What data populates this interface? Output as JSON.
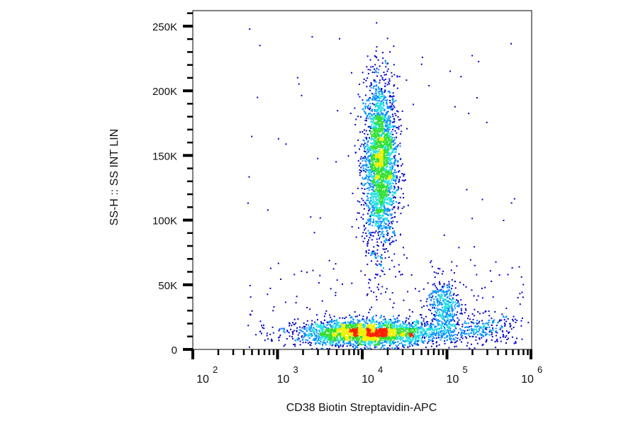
{
  "chart_data": {
    "type": "scatter",
    "subtype": "flow-cytometry density dot plot",
    "xlabel": "CD38 Biotin Streptavidin-APC",
    "ylabel": "SS-H :: SS INT LIN",
    "x_scale": "log",
    "xlim": [
      100,
      1000000
    ],
    "ylim": [
      0,
      262000
    ],
    "xticks": [
      {
        "value": 100,
        "base": "10",
        "exp": "2"
      },
      {
        "value": 1000,
        "base": "10",
        "exp": "3"
      },
      {
        "value": 10000,
        "base": "10",
        "exp": "4"
      },
      {
        "value": 100000,
        "base": "10",
        "exp": "5"
      },
      {
        "value": 1000000,
        "base": "10",
        "exp": "6"
      }
    ],
    "yticks": [
      {
        "value": 0,
        "label": "0"
      },
      {
        "value": 50000,
        "label": "50K"
      },
      {
        "value": 100000,
        "label": "100K"
      },
      {
        "value": 150000,
        "label": "150K"
      },
      {
        "value": 200000,
        "label": "200K"
      },
      {
        "value": 250000,
        "label": "250K"
      }
    ],
    "grid": false,
    "legend": "none",
    "colormap": [
      "#0000c8",
      "#0090ff",
      "#20e0e0",
      "#30e030",
      "#f0f000",
      "#ff2000"
    ],
    "populations": [
      {
        "x_center": 16000,
        "x_log_sd": 0.1,
        "y_center": 145000,
        "y_sd": 33000,
        "events": 2600
      },
      {
        "x_center": 12000,
        "x_log_sd": 0.42,
        "y_center": 13000,
        "y_sd": 5000,
        "events": 2600
      },
      {
        "x_center": 90000,
        "x_log_sd": 0.1,
        "y_center": 32000,
        "y_sd": 12000,
        "events": 450
      },
      {
        "x_center": 250000,
        "x_log_sd": 0.2,
        "y_center": 16000,
        "y_sd": 6000,
        "events": 250
      }
    ]
  }
}
